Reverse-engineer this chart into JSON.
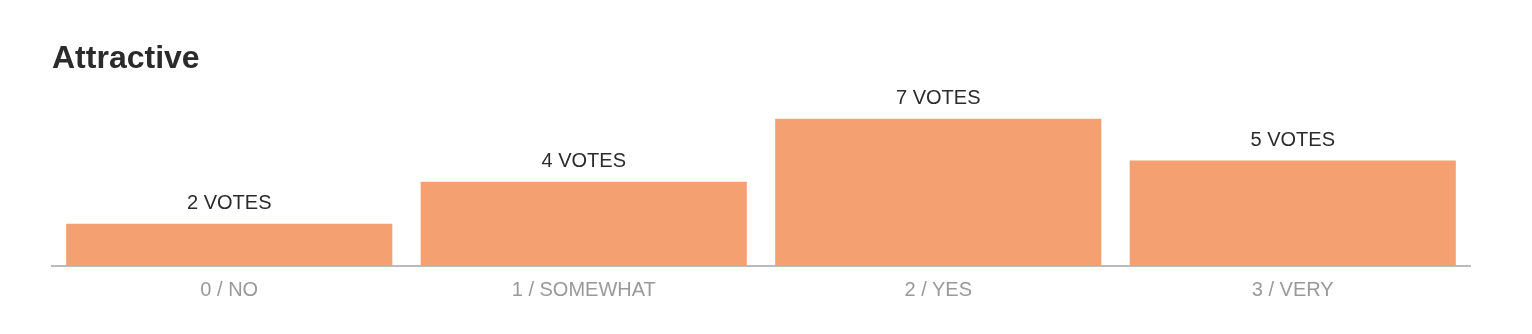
{
  "chart_data": {
    "type": "bar",
    "title": "Attractive",
    "categories": [
      "0 / NO",
      "1 / SOMEWHAT",
      "2 / YES",
      "3 / VERY"
    ],
    "values": [
      2,
      4,
      7,
      5
    ],
    "value_labels": [
      "2 VOTES",
      "4 VOTES",
      "7 VOTES",
      "5 VOTES"
    ],
    "color": "#f4a070",
    "legend": false,
    "grid": false
  }
}
